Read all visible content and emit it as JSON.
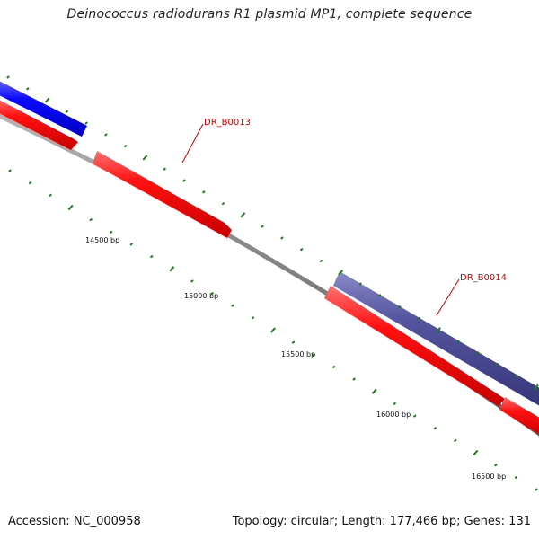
{
  "header": {
    "title": "Deinococcus radiodurans R1 plasmid MP1, complete sequence"
  },
  "footer": {
    "accession": "Accession: NC_000958",
    "topology": "Topology: circular; Length: 177,466 bp; Genes: 131"
  },
  "ticks": [
    {
      "position": 14500,
      "label": "14500 bp"
    },
    {
      "position": 15000,
      "label": "15000 bp"
    },
    {
      "position": 15500,
      "label": "15500 bp"
    },
    {
      "position": 16000,
      "label": "16000 bp"
    },
    {
      "position": 16500,
      "label": "16500 bp"
    }
  ],
  "gene_labels": [
    {
      "name": "DR_B0013"
    },
    {
      "name": "DR_B0014"
    }
  ],
  "colors": {
    "backbone": "#808080",
    "red_feature": "#ff0000",
    "blue_feature": "#0000ff",
    "navy_feature": "#4b4a99",
    "tick": "#1a7a1a",
    "label": "#cc0000"
  }
}
